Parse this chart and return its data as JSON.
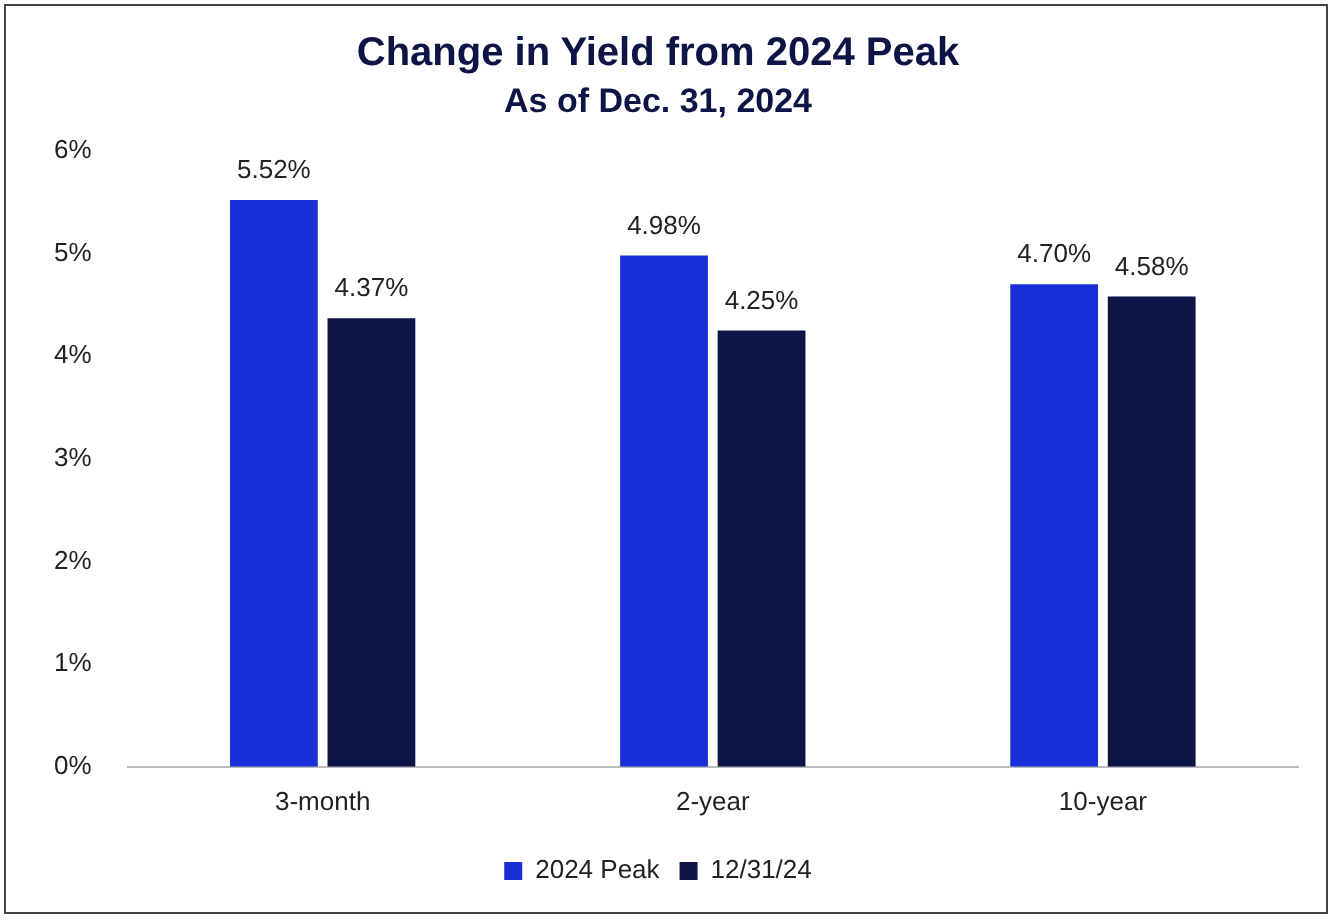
{
  "chart_data": {
    "type": "bar",
    "title": "Change in Yield from 2024 Peak",
    "subtitle": "As of Dec. 31, 2024",
    "categories": [
      "3-month",
      "2-year",
      "10-year"
    ],
    "series": [
      {
        "name": "2024 Peak",
        "color": "#1a2ed8",
        "values": [
          5.52,
          4.98,
          4.7
        ],
        "value_labels": [
          "5.52%",
          "4.98%",
          "4.70%"
        ]
      },
      {
        "name": "12/31/24",
        "color": "#0c1545",
        "values": [
          4.37,
          4.25,
          4.58
        ],
        "value_labels": [
          "4.37%",
          "4.25%",
          "4.58%"
        ]
      }
    ],
    "ylim": [
      0,
      6
    ],
    "yticks": [
      {
        "value": 0,
        "label": "0%"
      },
      {
        "value": 1,
        "label": "1%"
      },
      {
        "value": 2,
        "label": "2%"
      },
      {
        "value": 3,
        "label": "3%"
      },
      {
        "value": 4,
        "label": "4%"
      },
      {
        "value": 5,
        "label": "5%"
      },
      {
        "value": 6,
        "label": "6%"
      }
    ],
    "grid": false,
    "legend": "bottom"
  }
}
